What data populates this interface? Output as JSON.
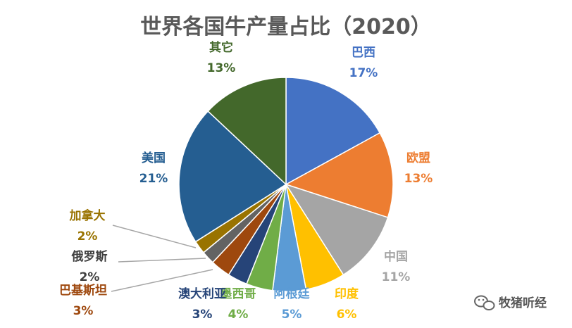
{
  "chart_data": {
    "type": "pie",
    "title": "世界各国牛产量占比（2020）",
    "unit": "%",
    "slices": [
      {
        "label": "巴西",
        "value": 17,
        "color": "#4472C4"
      },
      {
        "label": "欧盟",
        "value": 13,
        "color": "#ED7D31"
      },
      {
        "label": "中国",
        "value": 11,
        "color": "#A5A5A5"
      },
      {
        "label": "印度",
        "value": 6,
        "color": "#FFC000"
      },
      {
        "label": "阿根廷",
        "value": 5,
        "color": "#5B9BD5"
      },
      {
        "label": "墨西哥",
        "value": 4,
        "color": "#70AD47"
      },
      {
        "label": "澳大利亚",
        "value": 3,
        "color": "#264478"
      },
      {
        "label": "巴基斯坦",
        "value": 3,
        "color": "#9E480E"
      },
      {
        "label": "俄罗斯",
        "value": 2,
        "color": "#636363"
      },
      {
        "label": "加拿大",
        "value": 2,
        "color": "#997300"
      },
      {
        "label": "美国",
        "value": 21,
        "color": "#255E91"
      },
      {
        "label": "其它",
        "value": 13,
        "color": "#43682B"
      }
    ],
    "legend": "none"
  },
  "watermark": {
    "text": "牧猪听经",
    "icon": "wechat-icon"
  }
}
